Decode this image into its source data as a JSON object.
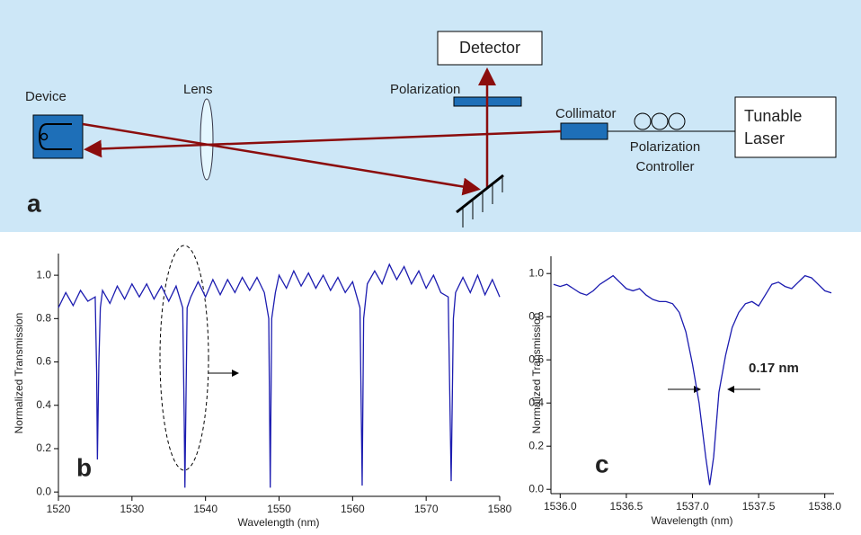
{
  "diagram": {
    "panel_label": "a",
    "device": "Device",
    "lens": "Lens",
    "polarization": "Polarization",
    "detector": "Detector",
    "collimator": "Collimator",
    "polarization_controller": [
      "Polarization",
      "Controller"
    ],
    "tunable_laser": [
      "Tunable",
      "Laser"
    ]
  },
  "chart_data": [
    {
      "type": "line",
      "panel_label": "b",
      "x_label": "Wavelength (nm)",
      "y_label": "Normalized Transmission",
      "color": "#1c1cb0",
      "x": [
        1520,
        1521,
        1522,
        1523,
        1524,
        1525,
        1525.2,
        1525.3,
        1525.5,
        1525.7,
        1526,
        1527,
        1528,
        1529,
        1530,
        1531,
        1532,
        1533,
        1534,
        1535,
        1536,
        1536.9,
        1537.1,
        1537.2,
        1537.3,
        1537.5,
        1538,
        1539,
        1540,
        1541,
        1542,
        1543,
        1544,
        1545,
        1546,
        1547,
        1548,
        1548.6,
        1548.8,
        1549,
        1549.5,
        1550,
        1551,
        1552,
        1553,
        1554,
        1555,
        1556,
        1557,
        1558,
        1559,
        1560,
        1561,
        1561.3,
        1561.5,
        1562,
        1563,
        1564,
        1565,
        1566,
        1567,
        1568,
        1569,
        1570,
        1571,
        1572,
        1573,
        1573.4,
        1573.7,
        1574,
        1575,
        1576,
        1577,
        1578,
        1579,
        1580
      ],
      "values": [
        0.85,
        0.92,
        0.86,
        0.93,
        0.88,
        0.9,
        0.55,
        0.15,
        0.6,
        0.85,
        0.93,
        0.87,
        0.95,
        0.89,
        0.96,
        0.9,
        0.96,
        0.89,
        0.95,
        0.88,
        0.95,
        0.85,
        0.35,
        0.02,
        0.3,
        0.85,
        0.9,
        0.97,
        0.9,
        0.98,
        0.91,
        0.98,
        0.92,
        0.99,
        0.93,
        0.99,
        0.92,
        0.8,
        0.02,
        0.8,
        0.92,
        1.0,
        0.94,
        1.02,
        0.95,
        1.01,
        0.94,
        1.0,
        0.93,
        0.99,
        0.92,
        0.97,
        0.85,
        0.03,
        0.8,
        0.96,
        1.02,
        0.96,
        1.05,
        0.98,
        1.04,
        0.96,
        1.02,
        0.94,
        1.0,
        0.92,
        0.9,
        0.05,
        0.8,
        0.92,
        0.99,
        0.92,
        1.0,
        0.91,
        0.98,
        0.9
      ],
      "xlim": [
        1520,
        1580
      ],
      "xticks": [
        1520,
        1530,
        1540,
        1550,
        1560,
        1570,
        1580
      ],
      "ylim": [
        -0.02,
        1.1
      ],
      "yticks": [
        {
          "value": 0,
          "label": "0.0"
        },
        0.2,
        0.4,
        0.6,
        0.8,
        {
          "value": 1,
          "label": "1.0"
        }
      ]
    },
    {
      "type": "line",
      "panel_label": "c",
      "x_label": "Wavelength (nm)",
      "y_label": "Normalized Transmission",
      "color": "#1c1cb0",
      "annotation": "0.17 nm",
      "x": [
        1535.95,
        1536.0,
        1536.05,
        1536.1,
        1536.15,
        1536.2,
        1536.25,
        1536.3,
        1536.35,
        1536.4,
        1536.45,
        1536.5,
        1536.55,
        1536.6,
        1536.65,
        1536.7,
        1536.75,
        1536.8,
        1536.85,
        1536.9,
        1536.95,
        1537.0,
        1537.05,
        1537.1,
        1537.13,
        1537.16,
        1537.2,
        1537.25,
        1537.3,
        1537.35,
        1537.4,
        1537.45,
        1537.5,
        1537.55,
        1537.6,
        1537.65,
        1537.7,
        1537.75,
        1537.8,
        1537.85,
        1537.9,
        1537.95,
        1538.0,
        1538.05
      ],
      "values": [
        0.95,
        0.94,
        0.95,
        0.93,
        0.91,
        0.9,
        0.92,
        0.95,
        0.97,
        0.99,
        0.96,
        0.93,
        0.92,
        0.93,
        0.9,
        0.88,
        0.87,
        0.87,
        0.86,
        0.82,
        0.73,
        0.58,
        0.4,
        0.15,
        0.02,
        0.15,
        0.45,
        0.62,
        0.75,
        0.82,
        0.86,
        0.87,
        0.85,
        0.9,
        0.95,
        0.96,
        0.94,
        0.93,
        0.96,
        0.99,
        0.98,
        0.95,
        0.92,
        0.91
      ],
      "xlim": [
        1535.93,
        1538.07
      ],
      "xticks": [
        {
          "value": 1536,
          "label": "1536.0"
        },
        1536.5,
        {
          "value": 1537,
          "label": "1537.0"
        },
        1537.5,
        {
          "value": 1538,
          "label": "1538.0"
        }
      ],
      "ylim": [
        -0.02,
        1.08
      ],
      "yticks": [
        {
          "value": 0,
          "label": "0.0"
        },
        0.2,
        0.4,
        0.6,
        0.8,
        {
          "value": 1,
          "label": "1.0"
        }
      ]
    }
  ]
}
